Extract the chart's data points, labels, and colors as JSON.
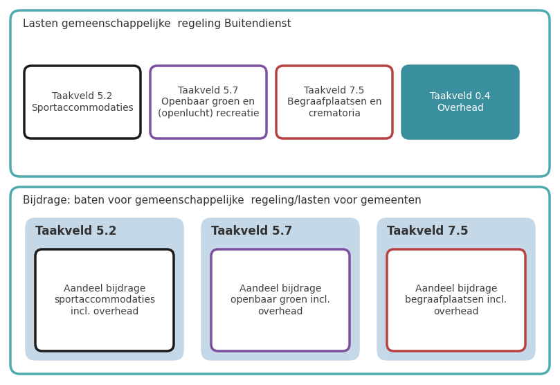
{
  "top_box_title": "Lasten gemeenschappelijke  regeling Buitendienst",
  "top_box_border": "#4DAAAF",
  "top_box_bg": "#FFFFFF",
  "boxes_top": [
    {
      "label": "Taakveld 5.2\nSportaccommodaties",
      "border_color": "#1A1A1A",
      "bg_color": "#FFFFFF",
      "text_color": "#404040"
    },
    {
      "label": "Taakveld 5.7\nOpenbaar groen en\n(openlucht) recreatie",
      "border_color": "#7B4F9E",
      "bg_color": "#FFFFFF",
      "text_color": "#404040"
    },
    {
      "label": "Taakveld 7.5\nBegraafplaatsen en\ncrematoria",
      "border_color": "#B94040",
      "bg_color": "#FFFFFF",
      "text_color": "#404040"
    },
    {
      "label": "Taakveld 0.4\nOverhead",
      "border_color": "#3A8F9E",
      "bg_color": "#3A8F9E",
      "text_color": "#FFFFFF"
    }
  ],
  "bottom_box_title": "Bijdrage: baten voor gemeenschappelijke  regeling/lasten voor gemeenten",
  "bottom_box_border": "#4DAAAF",
  "bottom_box_bg": "#FFFFFF",
  "bottom_panels": [
    {
      "panel_bg": "#C5D8E8",
      "panel_label": "Taakveld 5.2",
      "inner_label": "Aandeel bijdrage\nsportaccommodaties\nincl. overhead",
      "inner_border": "#1A1A1A",
      "inner_bg": "#FFFFFF"
    },
    {
      "panel_bg": "#C5D8E8",
      "panel_label": "Taakveld 5.7",
      "inner_label": "Aandeel bijdrage\nopenbaar groen incl.\noverhead",
      "inner_border": "#7B4F9E",
      "inner_bg": "#FFFFFF"
    },
    {
      "panel_bg": "#C5D8E8",
      "panel_label": "Taakveld 7.5",
      "inner_label": "Aandeel bijdrage\nbegraafplaatsen incl.\noverhead",
      "inner_border": "#B94040",
      "inner_bg": "#FFFFFF"
    }
  ],
  "fig_w": 8.09,
  "fig_h": 5.56,
  "dpi": 100
}
